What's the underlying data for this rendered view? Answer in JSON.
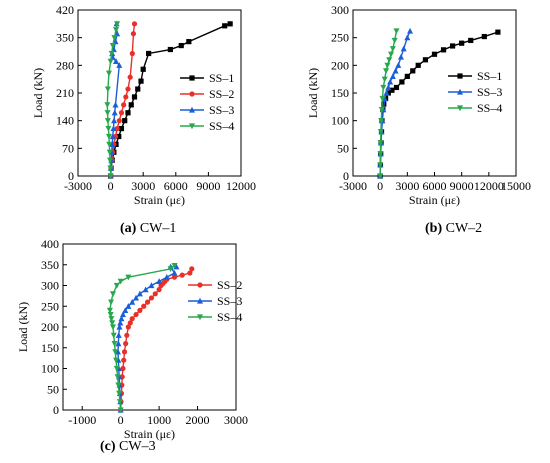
{
  "chart_data": [
    {
      "type": "line",
      "caption_letter": "(a)",
      "caption_text": " CW–1",
      "xlabel": "Strain (με)",
      "ylabel": "Load (kN)",
      "xlim": [
        -3000,
        12000
      ],
      "ylim": [
        0,
        420
      ],
      "xticks": [
        -3000,
        0,
        3000,
        6000,
        9000,
        12000
      ],
      "yticks": [
        0,
        70,
        140,
        210,
        280,
        350,
        420
      ],
      "legend_position": "center-right",
      "series": [
        {
          "name": "SS–1",
          "color": "#000000",
          "marker": "square",
          "x": [
            0,
            50,
            150,
            300,
            500,
            750,
            1000,
            1300,
            1600,
            1900,
            2200,
            2500,
            2800,
            3000,
            3500,
            5500,
            6500,
            7200,
            10500,
            11000
          ],
          "y": [
            0,
            20,
            40,
            60,
            80,
            100,
            120,
            140,
            160,
            180,
            200,
            220,
            240,
            270,
            310,
            320,
            330,
            340,
            380,
            385
          ]
        },
        {
          "name": "SS–2",
          "color": "#e8302a",
          "marker": "circle",
          "x": [
            0,
            50,
            120,
            200,
            300,
            450,
            600,
            800,
            1000,
            1200,
            1400,
            1600,
            1800,
            2000,
            2100,
            2200
          ],
          "y": [
            0,
            20,
            40,
            60,
            80,
            100,
            120,
            140,
            160,
            180,
            200,
            220,
            250,
            310,
            360,
            385
          ]
        },
        {
          "name": "SS–3",
          "color": "#1a5ed8",
          "marker": "triangle-up",
          "x": [
            0,
            30,
            60,
            100,
            150,
            200,
            260,
            320,
            380,
            450,
            800,
            500,
            200,
            150,
            300,
            450,
            600,
            550
          ],
          "y": [
            0,
            20,
            40,
            60,
            80,
            100,
            120,
            140,
            160,
            180,
            280,
            290,
            300,
            310,
            320,
            340,
            360,
            385
          ]
        },
        {
          "name": "SS–4",
          "color": "#26a84c",
          "marker": "triangle-down",
          "x": [
            0,
            -20,
            -50,
            -80,
            -120,
            -150,
            -200,
            -250,
            -280,
            -300,
            -250,
            -150,
            0,
            100,
            200,
            350,
            500,
            600
          ],
          "y": [
            0,
            20,
            40,
            60,
            80,
            100,
            120,
            140,
            160,
            180,
            220,
            260,
            290,
            310,
            330,
            350,
            370,
            385
          ]
        }
      ]
    },
    {
      "type": "line",
      "caption_letter": "(b)",
      "caption_text": " CW–2",
      "xlabel": "Strain (με)",
      "ylabel": "Load (kN)",
      "xlim": [
        -3000,
        15000
      ],
      "ylim": [
        0,
        300
      ],
      "xticks": [
        -3000,
        0,
        3000,
        6000,
        9000,
        12000,
        15000
      ],
      "yticks": [
        0,
        50,
        100,
        150,
        200,
        250,
        300
      ],
      "legend_position": "center-right",
      "series": [
        {
          "name": "SS–1",
          "color": "#000000",
          "marker": "square",
          "x": [
            0,
            30,
            60,
            100,
            150,
            200,
            300,
            400,
            600,
            900,
            1300,
            1800,
            2400,
            3000,
            3600,
            4200,
            5000,
            6000,
            7000,
            8000,
            9000,
            10000,
            11500,
            13000
          ],
          "y": [
            0,
            20,
            40,
            60,
            80,
            100,
            120,
            130,
            140,
            150,
            155,
            160,
            170,
            180,
            190,
            200,
            210,
            220,
            228,
            235,
            240,
            245,
            252,
            260
          ]
        },
        {
          "name": "SS–3",
          "color": "#1a5ed8",
          "marker": "triangle-up",
          "x": [
            0,
            20,
            50,
            100,
            150,
            250,
            350,
            500,
            700,
            900,
            1100,
            1400,
            1700,
            2000,
            2300,
            2600,
            3000,
            3300
          ],
          "y": [
            0,
            20,
            40,
            60,
            80,
            100,
            120,
            140,
            150,
            160,
            170,
            180,
            190,
            200,
            215,
            230,
            250,
            262
          ]
        },
        {
          "name": "SS–4",
          "color": "#26a84c",
          "marker": "triangle-down",
          "x": [
            0,
            10,
            30,
            50,
            80,
            120,
            180,
            250,
            350,
            500,
            650,
            800,
            1000,
            1200,
            1400,
            1600,
            1800
          ],
          "y": [
            0,
            20,
            40,
            60,
            80,
            100,
            120,
            140,
            160,
            175,
            190,
            200,
            210,
            220,
            230,
            245,
            262
          ]
        }
      ]
    },
    {
      "type": "line",
      "caption_letter": "(c)",
      "caption_text": " CW–3",
      "xlabel": "Strain (με)",
      "ylabel": "Load (kN)",
      "xlim": [
        -1500,
        3000
      ],
      "ylim": [
        0,
        400
      ],
      "xticks": [
        -1000,
        0,
        1000,
        2000,
        3000
      ],
      "yticks": [
        0,
        50,
        100,
        150,
        200,
        250,
        300,
        350,
        400
      ],
      "legend_position": "center-right",
      "series": [
        {
          "name": "SS–2",
          "color": "#e8302a",
          "marker": "circle",
          "x": [
            0,
            10,
            20,
            30,
            40,
            60,
            80,
            100,
            130,
            160,
            200,
            250,
            300,
            400,
            500,
            600,
            700,
            800,
            900,
            1000,
            1050,
            1100,
            1150,
            1200,
            1400,
            1600,
            1800,
            1850
          ],
          "y": [
            0,
            20,
            40,
            60,
            80,
            100,
            120,
            140,
            160,
            180,
            200,
            210,
            220,
            230,
            240,
            250,
            260,
            270,
            280,
            290,
            300,
            305,
            310,
            315,
            320,
            325,
            330,
            340
          ]
        },
        {
          "name": "SS–3",
          "color": "#1a5ed8",
          "marker": "triangle-up",
          "x": [
            0,
            -10,
            -20,
            -30,
            -40,
            -50,
            -60,
            -70,
            -60,
            -50,
            -30,
            -10,
            20,
            60,
            120,
            200,
            300,
            400,
            500,
            650,
            800,
            1000,
            1200,
            1400,
            1300,
            1450
          ],
          "y": [
            0,
            20,
            40,
            60,
            80,
            100,
            120,
            140,
            160,
            180,
            200,
            210,
            220,
            230,
            240,
            250,
            260,
            270,
            280,
            290,
            300,
            310,
            320,
            330,
            345,
            345
          ]
        },
        {
          "name": "SS–4",
          "color": "#26a84c",
          "marker": "triangle-down",
          "x": [
            0,
            -20,
            -40,
            -60,
            -80,
            -100,
            -120,
            -140,
            -160,
            -180,
            -200,
            -220,
            -240,
            -260,
            -280,
            -250,
            -200,
            -100,
            0,
            200,
            1300,
            1400
          ],
          "y": [
            0,
            20,
            40,
            60,
            80,
            100,
            120,
            140,
            160,
            180,
            200,
            210,
            220,
            230,
            240,
            260,
            280,
            300,
            310,
            320,
            340,
            348
          ]
        }
      ]
    }
  ]
}
